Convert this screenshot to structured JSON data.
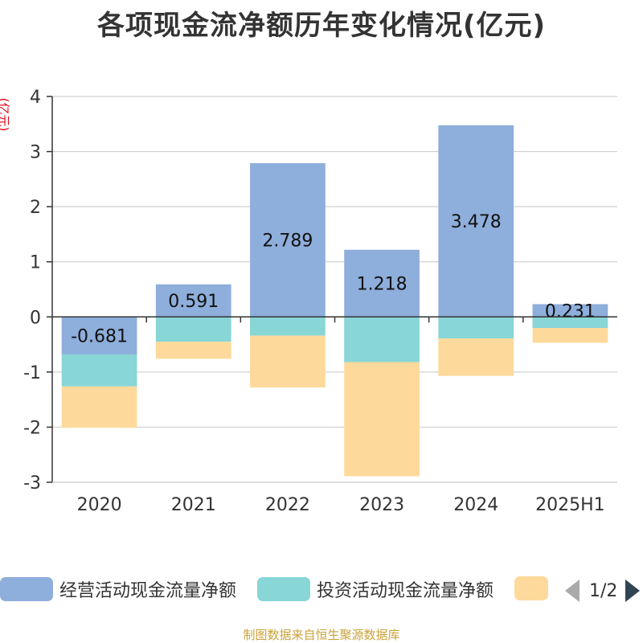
{
  "chart_data": {
    "type": "bar",
    "stacked": true,
    "title": "各项现金流净额历年变化情况(亿元)",
    "ylabel": "(亿元)",
    "categories": [
      "2020",
      "2021",
      "2022",
      "2023",
      "2024",
      "2025H1"
    ],
    "ylim": [
      -3,
      4
    ],
    "yticks": [
      -3,
      -2,
      -1,
      0,
      1,
      2,
      3,
      4
    ],
    "grid": true,
    "legend_position": "bottom",
    "series": [
      {
        "name": "经营活动现金流量净额",
        "color": "#8eaedb",
        "show_labels": true,
        "values": [
          -0.681,
          0.591,
          2.789,
          1.218,
          3.478,
          0.231
        ]
      },
      {
        "name": "投资活动现金流量净额",
        "color": "#88d6d6",
        "show_labels": false,
        "values": [
          -0.58,
          -0.45,
          -0.34,
          -0.82,
          -0.39,
          -0.2
        ]
      },
      {
        "name": "",
        "color": "#fdd99b",
        "show_labels": false,
        "values": [
          -0.75,
          -0.31,
          -0.94,
          -2.07,
          -0.68,
          -0.27
        ]
      }
    ]
  },
  "legend": {
    "item1": "经营活动现金流量净额",
    "item2": "投资活动现金流量净额",
    "item3": "",
    "page": "1/2"
  },
  "source": "制图数据来自恒生聚源数据库"
}
